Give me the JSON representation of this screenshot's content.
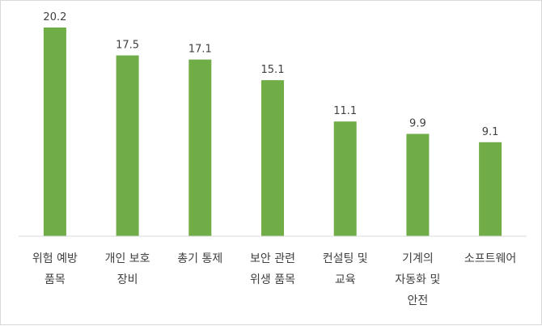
{
  "chart_data": {
    "type": "bar",
    "title": "",
    "xlabel": "",
    "ylabel": "",
    "categories": [
      [
        "위험 예방",
        "품목"
      ],
      [
        "개인 보호",
        "장비"
      ],
      [
        "총기 통제"
      ],
      [
        "보안 관련",
        "위생 품목"
      ],
      [
        "컨설팅 및",
        "교육"
      ],
      [
        "기계의",
        "자동화 및",
        "안전"
      ],
      [
        "소프트웨어"
      ]
    ],
    "values": [
      20.2,
      17.5,
      17.1,
      15.1,
      11.1,
      9.9,
      9.1
    ],
    "data_labels": [
      "20.2",
      "17.5",
      "17.1",
      "15.1",
      "11.1",
      "9.9",
      "9.1"
    ],
    "ylim": [
      0,
      22
    ],
    "grid": false,
    "legend": "none",
    "bar_color": "#70ad47",
    "axis_color": "#d9d9d9",
    "text_color": "#404040"
  }
}
